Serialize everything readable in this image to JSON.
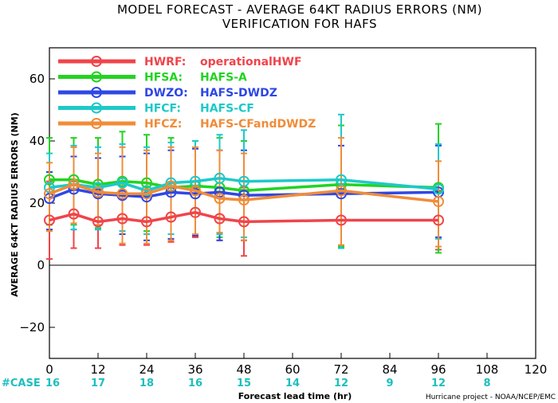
{
  "chart_data": {
    "type": "line",
    "title": "MODEL FORECAST - AVERAGE 64KT RADIUS ERRORS (NM)",
    "subtitle": "VERIFICATION FOR HAFS",
    "xlabel": "Forecast lead time (hr)",
    "ylabel": "AVERAGE 64KT RADIUS ERRORS (NM)",
    "xlim": [
      0,
      120
    ],
    "ylim": [
      -30,
      70
    ],
    "xticks": [
      0,
      12,
      24,
      36,
      48,
      60,
      72,
      84,
      96,
      108,
      120
    ],
    "yticks": [
      -20,
      0,
      20,
      40,
      60
    ],
    "legend_position": "top-left",
    "cases_label": "#CASE",
    "case_counts": [
      {
        "x": 0,
        "n": "16"
      },
      {
        "x": 12,
        "n": "17"
      },
      {
        "x": 24,
        "n": "18"
      },
      {
        "x": 36,
        "n": "16"
      },
      {
        "x": 48,
        "n": "15"
      },
      {
        "x": 60,
        "n": "14"
      },
      {
        "x": 72,
        "n": "12"
      },
      {
        "x": 84,
        "n": "9"
      },
      {
        "x": 96,
        "n": "12"
      },
      {
        "x": 108,
        "n": "8"
      }
    ],
    "series": [
      {
        "name": "HWRF:",
        "desc": "operationalHWF",
        "color": "#f0444a",
        "x": [
          0,
          6,
          12,
          18,
          24,
          30,
          36,
          42,
          48,
          72,
          96
        ],
        "y": [
          14.5,
          16.5,
          14,
          15,
          14,
          15.5,
          17,
          15,
          14,
          14.5,
          14.5
        ],
        "low": [
          2,
          5.5,
          5.5,
          6.5,
          6.5,
          7.5,
          9,
          8,
          3,
          6,
          5
        ],
        "high": [
          27,
          27,
          24,
          24,
          22,
          24,
          25,
          23,
          25,
          23,
          24
        ]
      },
      {
        "name": "HFSA:",
        "desc": "HAFS-A",
        "color": "#22d322",
        "x": [
          0,
          6,
          12,
          18,
          24,
          30,
          36,
          42,
          48,
          72,
          96
        ],
        "y": [
          27.5,
          27.5,
          26,
          27,
          26.5,
          25,
          25.5,
          25,
          24,
          26,
          25
        ],
        "low": [
          13,
          13,
          12,
          11,
          11,
          10,
          10,
          9,
          8,
          6,
          4
        ],
        "high": [
          41,
          41,
          41,
          43,
          42,
          41,
          40,
          41,
          40,
          45,
          45.5
        ]
      },
      {
        "name": "DWZO:",
        "desc": "HAFS-DWDZ",
        "color": "#2e47e6",
        "x": [
          0,
          6,
          12,
          18,
          24,
          30,
          36,
          42,
          48,
          72,
          96
        ],
        "y": [
          21.5,
          24.5,
          23,
          22.5,
          22,
          23.5,
          23,
          23.5,
          22.5,
          23,
          23.5
        ],
        "low": [
          11.5,
          11.5,
          11.5,
          10,
          8,
          8.5,
          9.5,
          8,
          8,
          5.5,
          9
        ],
        "high": [
          30,
          35,
          34.5,
          35,
          36,
          37,
          37.5,
          37,
          37,
          38.5,
          38.5
        ]
      },
      {
        "name": "HFCF:",
        "desc": "HAFS-CF",
        "color": "#1dc9c9",
        "x": [
          0,
          6,
          12,
          18,
          24,
          30,
          36,
          42,
          48,
          72,
          96
        ],
        "y": [
          25,
          26,
          25,
          26.5,
          24,
          26.5,
          27,
          28,
          27,
          27.5,
          24.5
        ],
        "low": [
          11,
          11.5,
          11.5,
          11,
          10,
          10,
          10,
          10,
          9,
          5.5,
          8.5
        ],
        "high": [
          36,
          38.5,
          38,
          39,
          38,
          39.5,
          40,
          42,
          43.5,
          48.5,
          39
        ]
      },
      {
        "name": "HFCZ:",
        "desc": "HAFS-CFandDWDZ",
        "color": "#f08c38",
        "x": [
          0,
          6,
          12,
          18,
          24,
          30,
          36,
          42,
          48,
          72,
          96
        ],
        "y": [
          23,
          26,
          23.5,
          23,
          23,
          25.5,
          24,
          21.5,
          21,
          24,
          20.5
        ],
        "low": [
          11,
          13.5,
          13,
          7,
          7,
          8,
          10,
          10.5,
          8,
          6.5,
          6
        ],
        "high": [
          33,
          38,
          36,
          38,
          37,
          38,
          38,
          37,
          36,
          41,
          33.5
        ]
      }
    ]
  },
  "credit": "Hurricane project - NOAA/NCEP/EMC"
}
